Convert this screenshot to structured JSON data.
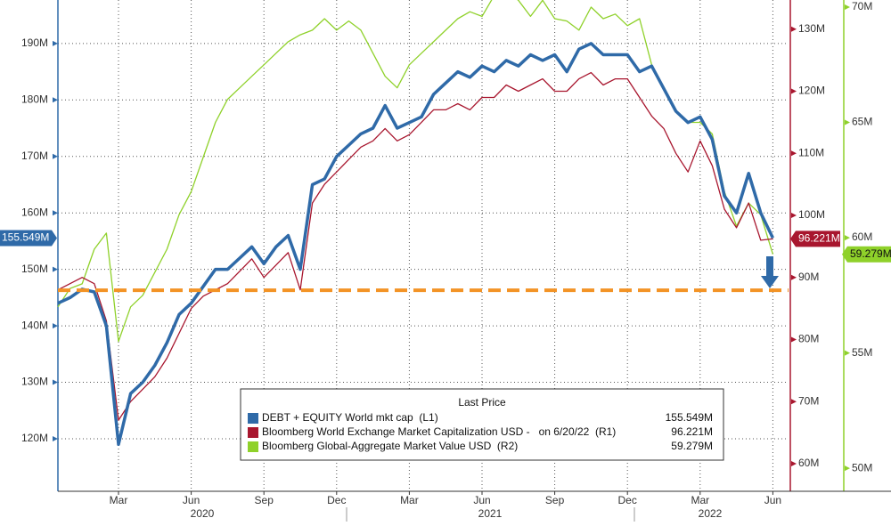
{
  "chart_data": {
    "type": "line",
    "categories": [
      null,
      null,
      null,
      null,
      null,
      "Mar",
      null,
      null,
      null,
      null,
      null,
      "Jun",
      null,
      null,
      null,
      null,
      null,
      "Sep",
      null,
      null,
      null,
      null,
      null,
      "Dec",
      null,
      null,
      null,
      null,
      null,
      "Mar",
      null,
      null,
      null,
      null,
      null,
      "Jun",
      null,
      null,
      null,
      null,
      null,
      "Sep",
      null,
      null,
      null,
      null,
      null,
      "Dec",
      null,
      null,
      null,
      null,
      null,
      "Mar",
      null,
      null,
      null,
      null,
      null,
      "Jun"
    ],
    "year_labels": [
      "2020",
      "2021",
      "2022"
    ],
    "legend_title": "Last Price",
    "series": [
      {
        "name": "DEBT + EQUITY World mkt cap  (L1)",
        "color": "#2f6aa8",
        "axis": "y",
        "last_label": "155.549M",
        "values": [
          144,
          145,
          146.5,
          146,
          140,
          119,
          128,
          130,
          133,
          137,
          142,
          144,
          147,
          150,
          150,
          152,
          154,
          151,
          154,
          156,
          150,
          165,
          166,
          170,
          172,
          174,
          175,
          179,
          175,
          176,
          177,
          181,
          183,
          185,
          184,
          186,
          185,
          187,
          186,
          188,
          187,
          188,
          185,
          189,
          190,
          188,
          188,
          188,
          185,
          186,
          182,
          178,
          176,
          177,
          173,
          163,
          160,
          167,
          160,
          155.549
        ]
      },
      {
        "name": "Bloomberg World Exchange Market Capitalization USD -   on 6/20/22  (R1)",
        "color": "#a8162e",
        "axis": "y2",
        "last_label": "96.221M",
        "values": [
          88,
          89,
          90,
          89,
          83,
          67,
          70,
          72,
          74,
          77,
          81,
          85,
          87,
          88,
          89,
          91,
          93,
          90,
          92,
          94,
          88,
          102,
          105,
          107,
          109,
          111,
          112,
          114,
          112,
          113,
          115,
          117,
          117,
          118,
          117,
          119,
          119,
          121,
          120,
          121,
          122,
          120,
          120,
          122,
          123,
          121,
          122,
          122,
          119,
          116,
          114,
          110,
          107,
          112,
          108,
          101,
          98,
          102,
          96,
          96.221
        ]
      },
      {
        "name": "Bloomberg Global-Aggregate Market Value USD  (R2)",
        "color": "#8fd12a",
        "axis": "y3",
        "last_label": "59.279M",
        "values": [
          57,
          57.8,
          58,
          59.5,
          60.2,
          55.5,
          57,
          57.5,
          58.5,
          59.5,
          61,
          62,
          63.5,
          65,
          66,
          66.5,
          67,
          67.5,
          68,
          68.5,
          68.8,
          69,
          69.5,
          69,
          69.4,
          69,
          68,
          67,
          66.5,
          67.5,
          68,
          68.5,
          69,
          69.5,
          69.8,
          69.6,
          70.5,
          70.7,
          70.3,
          69.6,
          70.3,
          69.5,
          69.4,
          69,
          70,
          69.5,
          69.7,
          69.2,
          69.5,
          67.5,
          66.5,
          65.5,
          65,
          65,
          64.5,
          62,
          60.5,
          61.5,
          61,
          59.279
        ]
      }
    ],
    "reference_line": {
      "value": 146.3,
      "color": "#f39325"
    },
    "ylim": [
      110.7,
      197.7
    ],
    "yticks": [
      {
        "value": 120,
        "label": "120M"
      },
      {
        "value": 130,
        "label": "130M"
      },
      {
        "value": 140,
        "label": "140M"
      },
      {
        "value": 150,
        "label": "150M"
      },
      {
        "value": 160,
        "label": "160M"
      },
      {
        "value": 170,
        "label": "170M"
      },
      {
        "value": 180,
        "label": "180M"
      },
      {
        "value": 190,
        "label": "190M"
      }
    ],
    "y2lim": [
      55.55,
      134.7
    ],
    "y2ticks": [
      {
        "value": 60,
        "label": "60M"
      },
      {
        "value": 70,
        "label": "70M"
      },
      {
        "value": 80,
        "label": "80M"
      },
      {
        "value": 90,
        "label": "90M"
      },
      {
        "value": 100,
        "label": "100M"
      },
      {
        "value": 110,
        "label": "110M"
      },
      {
        "value": 120,
        "label": "120M"
      },
      {
        "value": 130,
        "label": "130M"
      }
    ],
    "y3lim": [
      49.0,
      70.31
    ],
    "y3ticks": [
      {
        "value": 50,
        "label": "50M"
      },
      {
        "value": 55,
        "label": "55M"
      },
      {
        "value": 60,
        "label": "60M"
      },
      {
        "value": 65,
        "label": "65M"
      },
      {
        "value": 70,
        "label": "70M"
      }
    ],
    "grid": true
  }
}
